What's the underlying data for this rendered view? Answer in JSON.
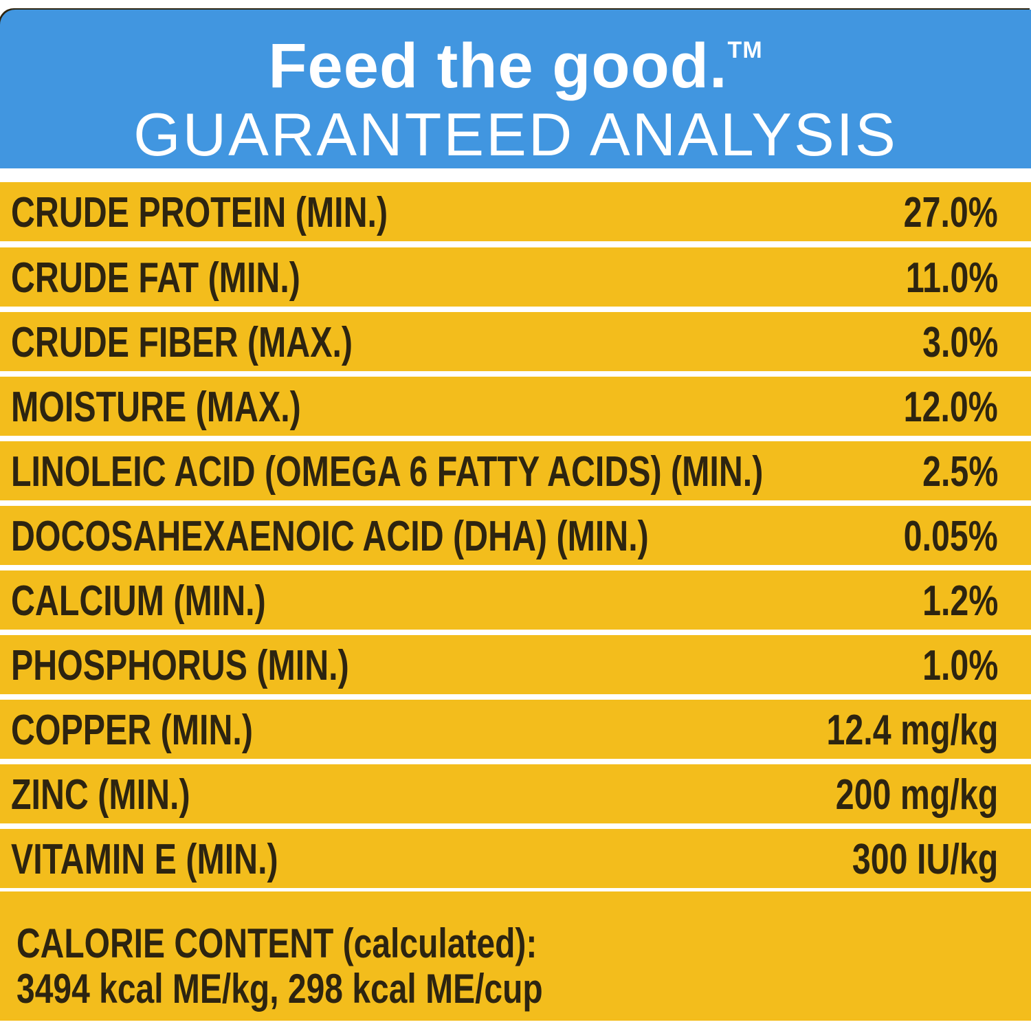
{
  "header": {
    "tagline": "Feed the good.",
    "trademark": "TM",
    "title": "GUARANTEED ANALYSIS"
  },
  "colors": {
    "header_blue": "#4196e0",
    "row_yellow": "#f3bd1c",
    "text_dark": "#2d2410"
  },
  "rows": [
    {
      "label": "CRUDE PROTEIN (MIN.)",
      "value": "27.0%"
    },
    {
      "label": "CRUDE FAT (MIN.)",
      "value": "11.0%"
    },
    {
      "label": "CRUDE FIBER (MAX.)",
      "value": "3.0%"
    },
    {
      "label": "MOISTURE (MAX.)",
      "value": "12.0%"
    },
    {
      "label": "LINOLEIC ACID (OMEGA 6 FATTY ACIDS) (MIN.)",
      "value": "2.5%"
    },
    {
      "label": "DOCOSAHEXAENOIC ACID (DHA) (MIN.)",
      "value": "0.05%"
    },
    {
      "label": "CALCIUM (MIN.)",
      "value": "1.2%"
    },
    {
      "label": "PHOSPHORUS (MIN.)",
      "value": "1.0%"
    },
    {
      "label": "COPPER (MIN.)",
      "value": "12.4 mg/kg"
    },
    {
      "label": "ZINC (MIN.)",
      "value": "200 mg/kg"
    },
    {
      "label": "VITAMIN E (MIN.)",
      "value": "300 IU/kg"
    }
  ],
  "calorie": {
    "heading": "CALORIE CONTENT (calculated):",
    "value": "3494 kcal ME/kg, 298 kcal ME/cup"
  }
}
